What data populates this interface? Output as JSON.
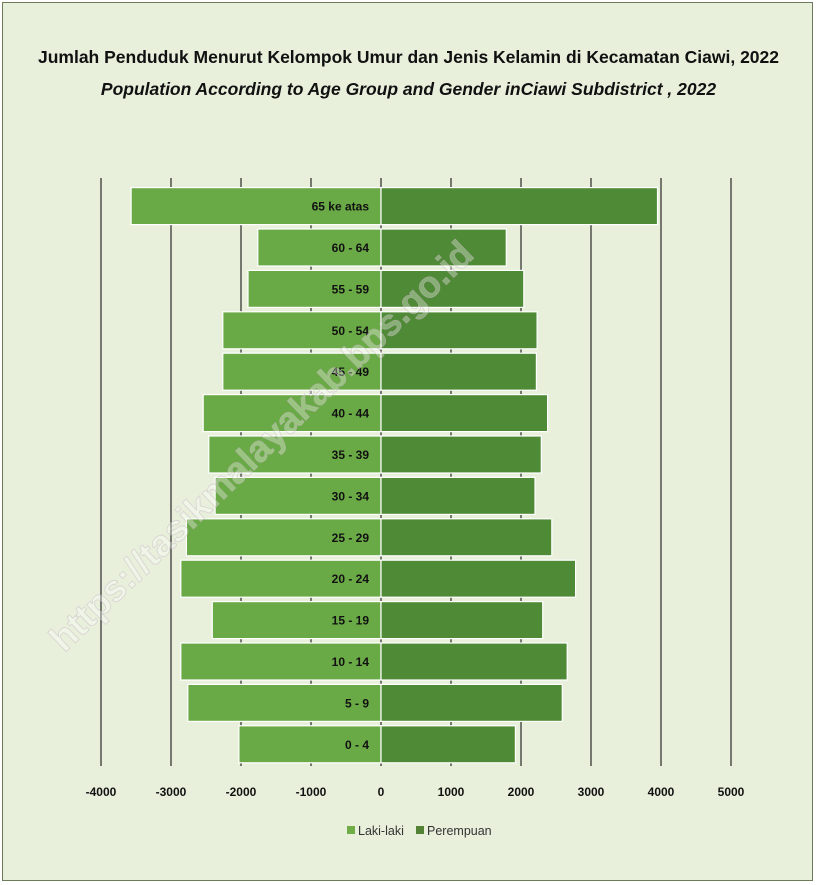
{
  "title": "Jumlah Penduduk Menurut Kelompok Umur dan Jenis Kelamin di Kecamatan Ciawi, 2022",
  "subtitle": "Population According to Age Group and Gender inCiawi Subdistrict , 2022",
  "watermark": "https://tasikmalayakab.bps.go.id",
  "colors": {
    "male": "#6aaa46",
    "female": "#4f8a36",
    "background": "#e8f0dc",
    "legend_male": "#70ad47",
    "legend_female": "#548235"
  },
  "chart_data": {
    "type": "bar",
    "orientation": "horizontal",
    "stacking": "population-pyramid",
    "categories": [
      "0 - 4",
      "5 - 9",
      "10 - 14",
      "15 - 19",
      "20 - 24",
      "25 - 29",
      "30 - 34",
      "35 - 39",
      "40 - 44",
      "45 - 49",
      "50 - 54",
      "55 - 59",
      "60 - 64",
      "65 ke atas"
    ],
    "series": [
      {
        "name": "Laki-laki",
        "values": [
          -2030,
          -2760,
          -2860,
          -2410,
          -2860,
          -2780,
          -2370,
          -2460,
          -2540,
          -2260,
          -2260,
          -1900,
          -1760,
          -3570
        ]
      },
      {
        "name": "Perempuan",
        "values": [
          1920,
          2590,
          2660,
          2310,
          2780,
          2440,
          2200,
          2290,
          2380,
          2220,
          2230,
          2040,
          1790,
          3950
        ]
      }
    ],
    "xticks": [
      -4000,
      -3000,
      -2000,
      -1000,
      0,
      1000,
      2000,
      3000,
      4000,
      5000
    ],
    "xlim": [
      -4000,
      5000
    ],
    "grid": true,
    "legend_position": "bottom"
  }
}
